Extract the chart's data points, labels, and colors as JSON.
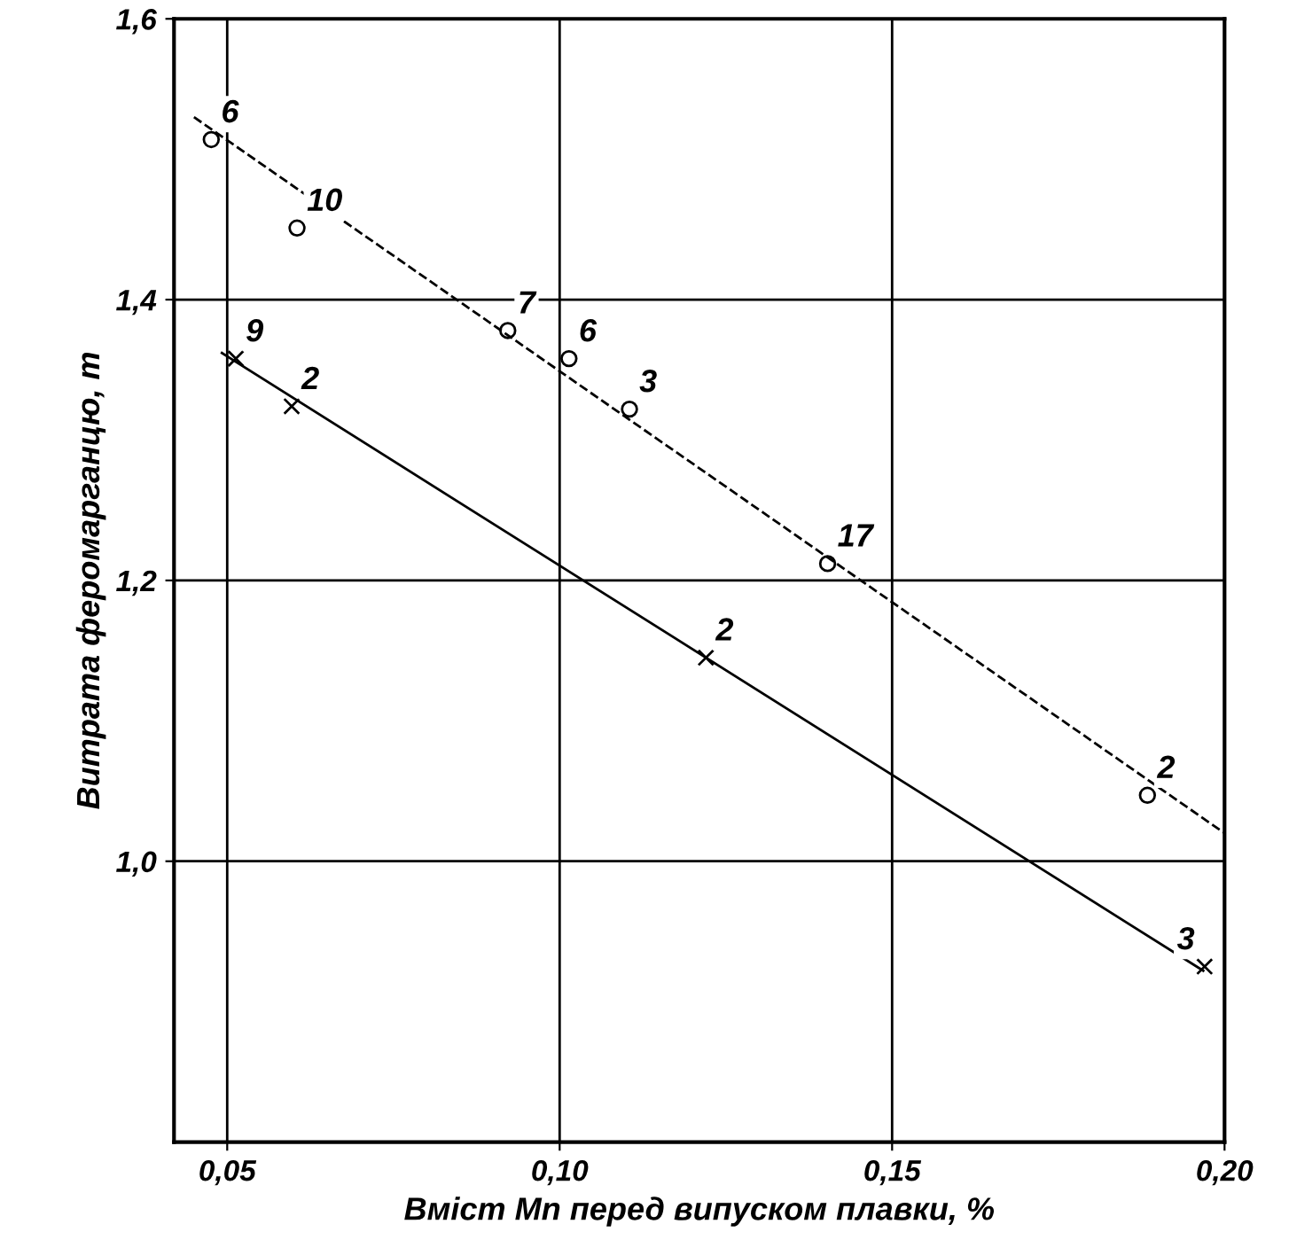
{
  "chart_data": {
    "type": "scatter",
    "xlabel": "Вміст Mn перед випуском плавки, %",
    "ylabel": "Витрата феромарганцю, т",
    "xlim": [
      0.042,
      0.2
    ],
    "ylim": [
      0.8,
      1.6
    ],
    "xticks": [
      {
        "value": 0.05,
        "label": "0,05"
      },
      {
        "value": 0.1,
        "label": "0,10"
      },
      {
        "value": 0.15,
        "label": "0,15"
      },
      {
        "value": 0.2,
        "label": "0,20"
      }
    ],
    "yticks": [
      {
        "value": 1.0,
        "label": "1,0"
      },
      {
        "value": 1.2,
        "label": "1,2"
      },
      {
        "value": 1.4,
        "label": "1,4"
      },
      {
        "value": 1.6,
        "label": "1,6"
      }
    ],
    "grid": true,
    "series": [
      {
        "marker": "circle",
        "color": "#000000",
        "x": [
          0.0476,
          0.0605,
          0.0922,
          0.1014,
          0.1105,
          0.1403,
          0.1884
        ],
        "values": [
          1.514,
          1.451,
          1.378,
          1.358,
          1.322,
          1.212,
          1.047
        ]
      },
      {
        "type": "line",
        "line_style": "dashed",
        "color": "#000000",
        "x": [
          0.045,
          0.2
        ],
        "values": [
          1.53,
          1.02
        ]
      },
      {
        "marker": "cross",
        "color": "#000000",
        "x": [
          0.0513,
          0.0597,
          0.122,
          0.197
        ],
        "values": [
          1.358,
          1.324,
          1.145,
          0.925
        ]
      },
      {
        "type": "line",
        "line_style": "solid",
        "color": "#000000",
        "x": [
          0.0492,
          0.1968
        ],
        "values": [
          1.362,
          0.922
        ]
      }
    ],
    "annotations": [
      {
        "text": "6",
        "x": 0.0476,
        "y": 1.514
      },
      {
        "text": "10",
        "x": 0.0605,
        "y": 1.451
      },
      {
        "text": "7",
        "x": 0.0922,
        "y": 1.378
      },
      {
        "text": "6",
        "x": 0.1014,
        "y": 1.358
      },
      {
        "text": "3",
        "x": 0.1105,
        "y": 1.322
      },
      {
        "text": "17",
        "x": 0.1403,
        "y": 1.212
      },
      {
        "text": "2",
        "x": 0.1884,
        "y": 1.047
      },
      {
        "text": "9",
        "x": 0.0513,
        "y": 1.358
      },
      {
        "text": "2",
        "x": 0.0597,
        "y": 1.324
      },
      {
        "text": "2",
        "x": 0.122,
        "y": 1.145
      },
      {
        "text": "3",
        "x": 0.197,
        "y": 0.925
      }
    ]
  }
}
